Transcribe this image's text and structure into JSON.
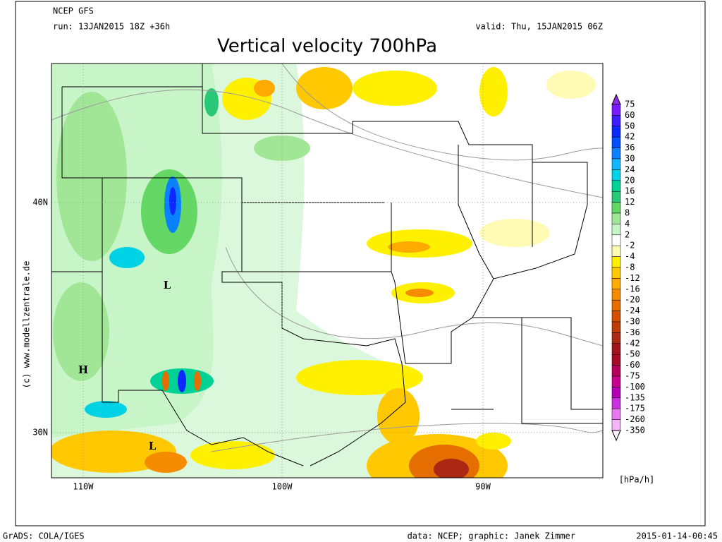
{
  "header": {
    "model": "NCEP GFS",
    "run": "run: 13JAN2015 18Z +36h",
    "valid": "valid: Thu, 15JAN2015 06Z",
    "title": "Vertical velocity 700hPa"
  },
  "map": {
    "lat_labels": [
      "40N",
      "30N"
    ],
    "lon_labels": [
      "110W",
      "100W",
      "90W"
    ],
    "pressure_centers": [
      "L",
      "H",
      "L"
    ]
  },
  "side_note": "(c) www.modellzentrale.de",
  "colorbar": {
    "labels": [
      75,
      60,
      50,
      42,
      36,
      30,
      24,
      20,
      16,
      12,
      8,
      4,
      2,
      -2,
      -4,
      -8,
      -12,
      -16,
      -20,
      -24,
      -30,
      -36,
      -42,
      -50,
      -60,
      -75,
      -100,
      -135,
      -175,
      -260,
      -350
    ],
    "top_color": "#8c28e6",
    "colors": [
      "#7a1aff",
      "#3c1eff",
      "#0a28ff",
      "#0050ff",
      "#0a82ff",
      "#14b4ff",
      "#00d2e6",
      "#00d296",
      "#28c878",
      "#64d764",
      "#a0e696",
      "#c8f5c8",
      "#ffffff",
      "#fffab4",
      "#fff000",
      "#ffc800",
      "#ffaa00",
      "#f58c00",
      "#e66e00",
      "#d25000",
      "#be3c0a",
      "#aa2814",
      "#a0141e",
      "#a50a28",
      "#b4005a",
      "#c8008c",
      "#b400b4",
      "#c832dc",
      "#e678f0",
      "#f5b4f5"
    ],
    "bottom_color": "#fff0ff",
    "unit": "[hPa/h]"
  },
  "footer": {
    "left": "GrADS: COLA/IGES",
    "center": "data: NCEP; graphic: Janek Zimmer",
    "right": "2015-01-14-00:45"
  }
}
